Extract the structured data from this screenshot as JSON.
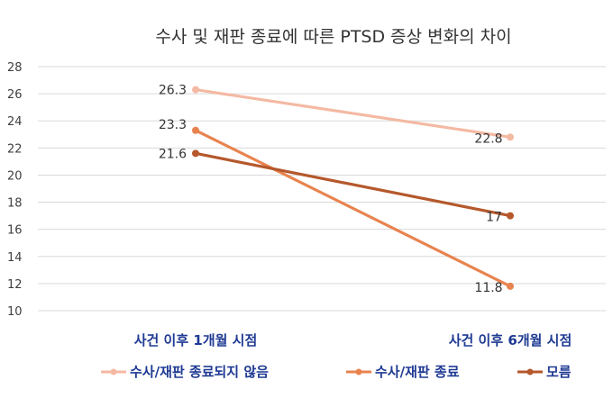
{
  "chart_data": {
    "type": "line",
    "title": "수사 및 재판 종료에 따른 PTSD 증상 변화의 차이",
    "categories": [
      "사건 이후 1개월 시점",
      "사건 이후 6개월 시점"
    ],
    "ylim": [
      10,
      28
    ],
    "yticks": [
      10,
      12,
      14,
      16,
      18,
      20,
      22,
      24,
      26,
      28
    ],
    "grid": true,
    "legend_position": "bottom",
    "series": [
      {
        "name": "수사/재판 종료되지 않음",
        "values": [
          26.3,
          22.8
        ],
        "labels": [
          "26.3",
          "22.8"
        ],
        "color": "#f4b9a3"
      },
      {
        "name": "수사/재판 종료",
        "values": [
          23.3,
          11.8
        ],
        "labels": [
          "23.3",
          "11.8"
        ],
        "color": "#e8834f"
      },
      {
        "name": "모름",
        "values": [
          21.6,
          17
        ],
        "labels": [
          "21.6",
          "17"
        ],
        "color": "#b5582c"
      }
    ]
  }
}
